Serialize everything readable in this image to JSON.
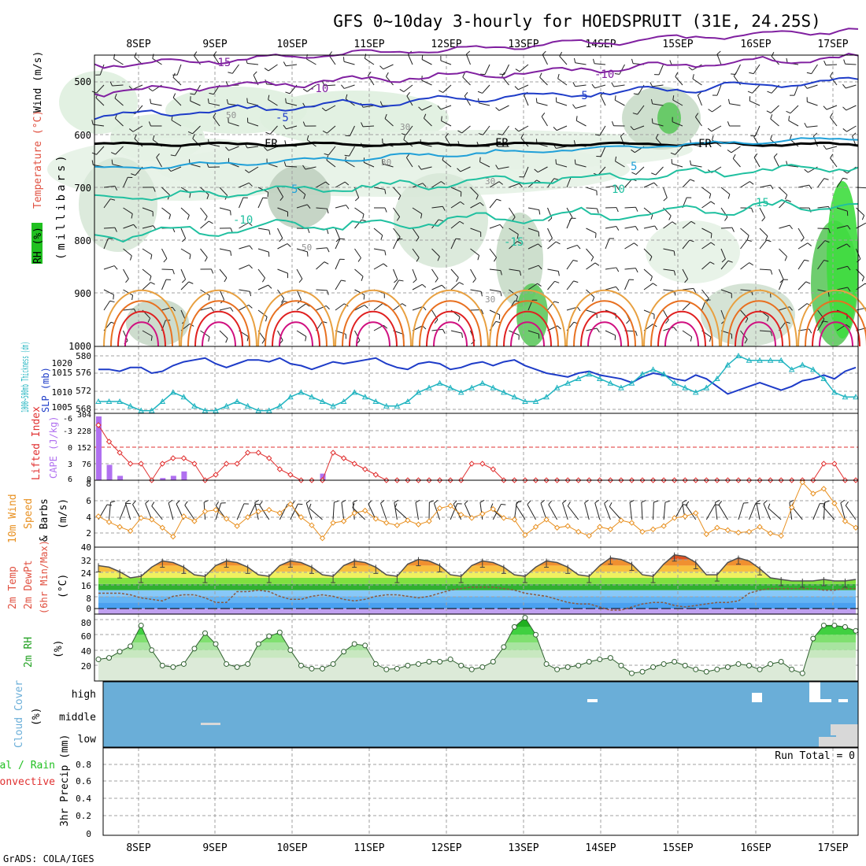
{
  "title": "GFS 0~10day 3-hourly for HOEDSPRUIT (31E, 24.25S)",
  "footer": "GrADS: COLA/IGES",
  "date_labels": [
    "8SEP",
    "9SEP",
    "10SEP",
    "11SEP",
    "12SEP",
    "13SEP",
    "14SEP",
    "15SEP",
    "16SEP",
    "17SEP"
  ],
  "colors": {
    "frame": "#000000",
    "grid": "#a0a0a0",
    "slp": "#1e3cc8",
    "thickness": "#20b4c0",
    "lifted": "#e03030",
    "cape": "#b070f0",
    "wind": "#e89020",
    "rh_green": "#20c020",
    "cloud": "#6aaed8",
    "rh_label": "#20a020",
    "temp_label": "#e05040"
  },
  "chart_data": [
    {
      "id": "upper",
      "type": "contour",
      "title": "",
      "ylabel_parts": [
        "RH (%)",
        "Temperature (°C)",
        "Wind (m/s)",
        "(millibars)"
      ],
      "yticks": [
        1000,
        900,
        800,
        700,
        600,
        500
      ],
      "ylim": [
        1000,
        450
      ],
      "contour_labels": [
        "-15",
        "-10",
        "-10",
        "-5",
        "-5",
        "FR",
        "FR",
        "FR",
        "5",
        "5",
        "-10",
        "10",
        "15",
        "-15",
        "30",
        "30",
        "30",
        "50",
        "50",
        "30"
      ],
      "temperature_levels_C": {
        "-15": 470,
        "-10": 510,
        "-5": 560,
        "0": 620,
        "5": 665,
        "10": 740,
        "15": 800
      }
    },
    {
      "id": "slp",
      "type": "line",
      "ylabel_left": "1000~500mb Thickness (dm)",
      "ylabel_right": "SLP (mb)",
      "left_ticks": [
        "580",
        "576",
        "572",
        "568"
      ],
      "right_ticks": [
        "1020",
        "1015",
        "1010",
        "1005"
      ],
      "series": [
        {
          "name": "SLP (mb)",
          "values": [
            1017,
            1017,
            1016,
            1018,
            1018,
            1015,
            1016,
            1019,
            1021,
            1022,
            1023,
            1020,
            1018,
            1020,
            1022,
            1022,
            1021,
            1023,
            1020,
            1019,
            1017,
            1019,
            1021,
            1020,
            1021,
            1022,
            1023,
            1020,
            1018,
            1017,
            1020,
            1021,
            1020,
            1017,
            1018,
            1020,
            1021,
            1019,
            1021,
            1022,
            1019,
            1017,
            1015,
            1014,
            1013,
            1015,
            1016,
            1014,
            1013,
            1012,
            1010,
            1013,
            1015,
            1014,
            1012,
            1011,
            1014,
            1012,
            1008,
            1004,
            1006,
            1008,
            1010,
            1008,
            1006,
            1008,
            1011,
            1012,
            1014,
            1012,
            1016,
            1018
          ]
        },
        {
          "name": "Thickness (dm)",
          "values": [
            570,
            570,
            570,
            569,
            568,
            568,
            570,
            572,
            571,
            569,
            568,
            568,
            569,
            570,
            569,
            568,
            568,
            569,
            571,
            572,
            571,
            570,
            569,
            570,
            572,
            571,
            570,
            569,
            569,
            570,
            572,
            573,
            574,
            573,
            572,
            573,
            574,
            573,
            572,
            571,
            570,
            570,
            571,
            573,
            574,
            575,
            576,
            575,
            574,
            573,
            574,
            576,
            577,
            576,
            574,
            573,
            572,
            573,
            575,
            578,
            580,
            579,
            579,
            579,
            579,
            577,
            578,
            577,
            575,
            572,
            571,
            571
          ]
        }
      ]
    },
    {
      "id": "lifted",
      "type": "line+bar",
      "ylabel_left": "Lifted Index",
      "ylabel_right": "CAPE (J/kg)",
      "left_ticks": [
        "-6",
        "-3",
        "0",
        "3",
        "6"
      ],
      "right_ticks": [
        "304",
        "228",
        "152",
        "76",
        "0"
      ],
      "series": [
        {
          "name": "Lifted Index",
          "values": [
            -4,
            -1,
            1,
            3,
            3,
            6,
            3,
            2,
            2,
            3,
            6,
            5,
            3,
            3,
            1,
            1,
            2,
            4,
            5,
            6,
            6,
            6,
            1,
            2,
            3,
            4,
            5,
            6,
            6,
            6,
            6,
            6,
            6,
            6,
            6,
            3,
            3,
            4,
            6,
            6,
            6,
            6,
            6,
            6,
            6,
            6,
            6,
            6,
            6,
            6,
            6,
            6,
            6,
            6,
            6,
            6,
            6,
            6,
            6,
            6,
            6,
            6,
            6,
            6,
            6,
            6,
            6,
            6,
            3,
            3,
            6,
            6
          ]
        },
        {
          "name": "CAPE (J/kg)",
          "values": [
            290,
            70,
            20,
            0,
            0,
            0,
            10,
            20,
            40,
            0,
            0,
            0,
            0,
            0,
            0,
            0,
            0,
            0,
            0,
            0,
            0,
            30,
            0,
            0,
            0,
            0,
            0,
            0,
            0,
            0,
            0,
            0,
            0,
            0,
            0,
            0,
            0,
            0,
            0,
            0,
            0,
            0,
            0,
            0,
            0,
            0,
            0,
            0,
            0,
            0,
            0,
            0,
            0,
            0,
            0,
            0,
            0,
            0,
            0,
            0,
            0,
            0,
            0,
            0,
            0,
            0,
            0,
            0,
            0,
            0,
            0,
            0
          ]
        }
      ]
    },
    {
      "id": "wind10",
      "type": "line",
      "ylabel": "10m Wind Speed & Barbs (m/s)",
      "ylabel_parts": [
        "10m Wind",
        "Speed",
        "& Barbs",
        "(m/s)"
      ],
      "left_ticks": [
        "8",
        "6",
        "4",
        "2"
      ],
      "ylim": [
        0,
        8
      ],
      "series": [
        {
          "name": "10m Wind Speed",
          "values": [
            3.8,
            3.1,
            2.5,
            2.0,
            3.6,
            3.4,
            2.4,
            1.3,
            3.8,
            3.2,
            4.4,
            4.6,
            3.5,
            2.6,
            3.7,
            4.4,
            4.6,
            4.2,
            5.3,
            3.7,
            2.7,
            1.1,
            3.0,
            3.2,
            4.2,
            4.5,
            3.5,
            3.0,
            2.7,
            3.3,
            2.8,
            3.2,
            4.8,
            5.1,
            4.0,
            3.6,
            4.1,
            4.7,
            3.6,
            3.4,
            1.5,
            2.5,
            3.4,
            2.4,
            2.6,
            1.9,
            1.4,
            2.5,
            2.2,
            3.3,
            3.0,
            1.9,
            2.2,
            2.6,
            3.6,
            3.8,
            4.2,
            1.6,
            2.4,
            2.1,
            1.8,
            1.9,
            2.5,
            1.7,
            1.4,
            4.9,
            8.0,
            6.6,
            7.2,
            5.4,
            3.2,
            2.4
          ]
        }
      ]
    },
    {
      "id": "temp2m",
      "type": "area",
      "ylabel_parts": [
        "2m Temp",
        "2m DewPt",
        "(6hr Min/Max)",
        "(°C)"
      ],
      "left_ticks": [
        "40",
        "32",
        "24",
        "16",
        "8",
        "0"
      ],
      "ylim": [
        -4,
        40
      ],
      "series": [
        {
          "name": "2m Temp",
          "values": [
            28,
            27,
            24,
            20,
            21,
            27,
            31,
            30,
            27,
            22,
            21,
            28,
            31,
            30,
            27,
            22,
            21,
            28,
            31,
            30,
            27,
            22,
            21,
            28,
            31,
            30,
            27,
            22,
            21,
            29,
            32,
            31,
            28,
            22,
            21,
            28,
            31,
            30,
            27,
            22,
            21,
            27,
            31,
            30,
            27,
            22,
            21,
            28,
            33,
            32,
            29,
            22,
            21,
            29,
            35,
            34,
            30,
            22,
            22,
            30,
            33,
            31,
            26,
            20,
            19,
            18,
            18,
            18,
            19,
            18,
            18,
            19
          ]
        },
        {
          "name": "2m DewPt",
          "values": [
            10,
            10,
            10,
            9,
            7,
            6,
            5,
            8,
            9,
            9,
            7,
            4,
            4,
            11,
            11,
            12,
            11,
            8,
            6,
            6,
            8,
            9,
            8,
            6,
            5,
            6,
            8,
            9,
            9,
            8,
            7,
            8,
            10,
            12,
            13,
            14,
            14,
            14,
            13,
            12,
            10,
            9,
            8,
            6,
            4,
            3,
            3,
            1,
            -1,
            -1,
            1,
            3,
            4,
            4,
            2,
            1,
            2,
            3,
            4,
            4,
            5,
            10,
            12,
            13,
            13,
            13,
            13,
            13,
            12,
            12,
            13,
            13
          ]
        }
      ]
    },
    {
      "id": "rh2m",
      "type": "area",
      "ylabel_parts": [
        "2m RH",
        "(%)"
      ],
      "left_ticks": [
        "80",
        "60",
        "40",
        "20"
      ],
      "ylim": [
        0,
        85
      ],
      "series": [
        {
          "name": "2m RH",
          "values": [
            28,
            30,
            38,
            45,
            72,
            40,
            20,
            18,
            22,
            42,
            62,
            48,
            22,
            18,
            22,
            48,
            58,
            63,
            40,
            20,
            16,
            16,
            22,
            38,
            48,
            46,
            22,
            15,
            16,
            20,
            22,
            25,
            25,
            28,
            20,
            15,
            18,
            25,
            44,
            70,
            82,
            60,
            22,
            15,
            18,
            20,
            25,
            28,
            30,
            20,
            10,
            12,
            18,
            22,
            25,
            20,
            15,
            12,
            15,
            18,
            22,
            20,
            15,
            22,
            25,
            15,
            10,
            55,
            72,
            72,
            70,
            65
          ]
        }
      ]
    },
    {
      "id": "cloud",
      "type": "heatmap",
      "ylabel_parts": [
        "Cloud Cover",
        "(%)"
      ],
      "levels": [
        "high",
        "middle",
        "low"
      ]
    },
    {
      "id": "precip",
      "type": "bar",
      "ylabel_parts": [
        "Total / Rain",
        "Convective",
        "3hr Precip (mm)"
      ],
      "left_ticks": [
        "0.8",
        "0.6",
        "0.4",
        "0.2",
        "0"
      ],
      "ylim": [
        0,
        0.9
      ],
      "run_total_label": "Run Total = 0",
      "values": []
    }
  ]
}
